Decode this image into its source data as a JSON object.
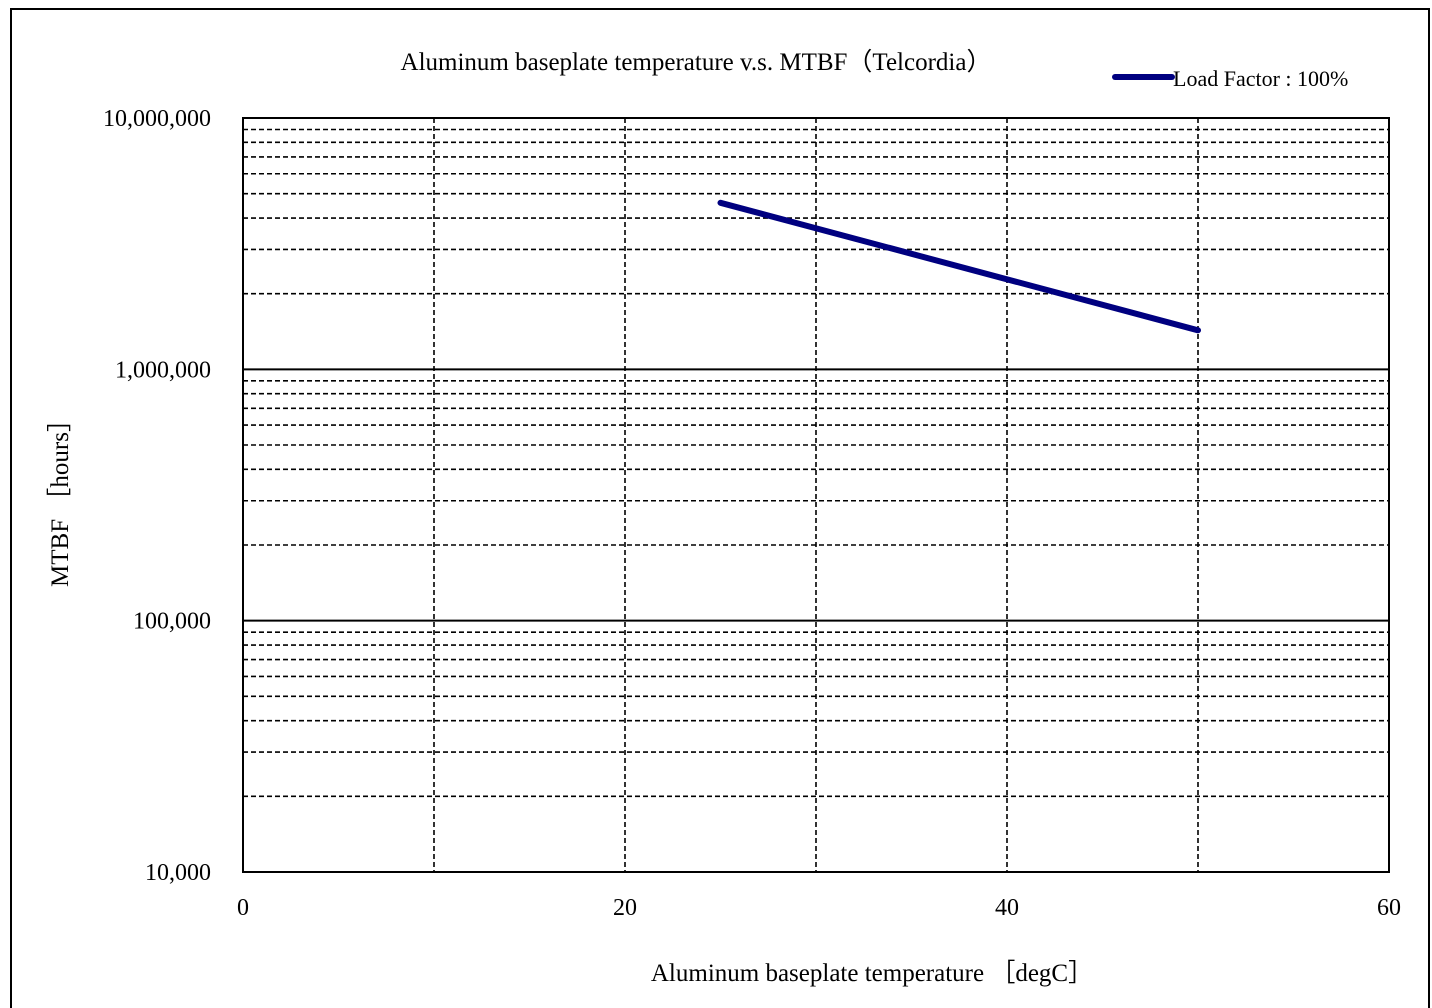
{
  "chart_data": {
    "type": "line",
    "title": "Aluminum baseplate temperature  v.s.  MTBF（Telcordia）",
    "xlabel": "Aluminum baseplate temperature ［degC］",
    "ylabel": "MTBF ［hours］",
    "xlim": [
      0,
      60
    ],
    "ylim": [
      10000,
      10000000
    ],
    "yscale": "log",
    "x_ticks": [
      "0",
      "20",
      "40",
      "60"
    ],
    "x_tick_values": [
      0,
      20,
      40,
      60
    ],
    "x_minor_grid": [
      10,
      30,
      50
    ],
    "y_ticks": [
      "10,000",
      "100,000",
      "1,000,000",
      "10,000,000"
    ],
    "y_tick_values": [
      10000,
      100000,
      1000000,
      10000000
    ],
    "grid": true,
    "legend_position": "top-right",
    "series": [
      {
        "name": "Load Factor : 100%",
        "color": "#000080",
        "x": [
          25,
          50
        ],
        "y": [
          4600000,
          1430000
        ]
      }
    ]
  }
}
